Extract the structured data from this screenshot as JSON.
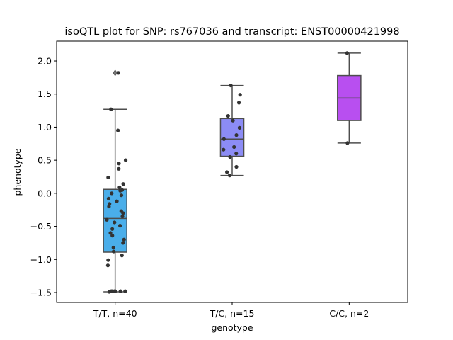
{
  "chart_data": {
    "type": "box",
    "title": "isoQTL plot for SNP: rs767036 and transcript: ENST00000421998",
    "xlabel": "genotype",
    "ylabel": "phenotype",
    "ylim": [
      -1.65,
      2.3
    ],
    "yticks": [
      -1.5,
      -1.0,
      -0.5,
      0.0,
      0.5,
      1.0,
      1.5,
      2.0
    ],
    "ytick_labels": [
      "−1.5",
      "−1.0",
      "−0.5",
      "0.0",
      "0.5",
      "1.0",
      "1.5",
      "2.0"
    ],
    "categories": [
      "T/T, n=40",
      "T/C, n=15",
      "C/C, n=2"
    ],
    "colors": {
      "box_fill": [
        "#4aaeea",
        "#8c8cf5",
        "#b84ff0"
      ],
      "box_edge": "#4d4d4d",
      "point": "#333333"
    },
    "boxes": [
      {
        "q1": -0.89,
        "median": -0.38,
        "q3": 0.06,
        "whisker_low": -1.49,
        "whisker_high": 1.27,
        "outliers": [
          1.82
        ]
      },
      {
        "q1": 0.56,
        "median": 0.82,
        "q3": 1.13,
        "whisker_low": 0.27,
        "whisker_high": 1.63,
        "outliers": []
      },
      {
        "q1": 1.1,
        "median": 1.44,
        "q3": 1.78,
        "whisker_low": 0.76,
        "whisker_high": 2.12,
        "outliers": []
      }
    ],
    "points": [
      [
        1.82,
        1.27,
        0.95,
        0.5,
        0.45,
        0.37,
        0.24,
        0.14,
        0.09,
        0.05,
        0.04,
        0.0,
        -0.03,
        -0.08,
        -0.12,
        -0.16,
        -0.2,
        -0.27,
        -0.3,
        -0.35,
        -0.4,
        -0.44,
        -0.49,
        -0.54,
        -0.6,
        -0.64,
        -0.7,
        -0.75,
        -0.82,
        -0.88,
        -0.94,
        -1.01,
        -1.09,
        -1.48,
        -1.48,
        -1.48,
        -1.48,
        -1.48,
        -1.48,
        -1.49
      ],
      [
        1.63,
        1.49,
        1.37,
        1.17,
        1.1,
        0.99,
        0.88,
        0.82,
        0.7,
        0.66,
        0.6,
        0.55,
        0.4,
        0.32,
        0.27
      ],
      [
        2.12,
        0.76
      ]
    ]
  }
}
